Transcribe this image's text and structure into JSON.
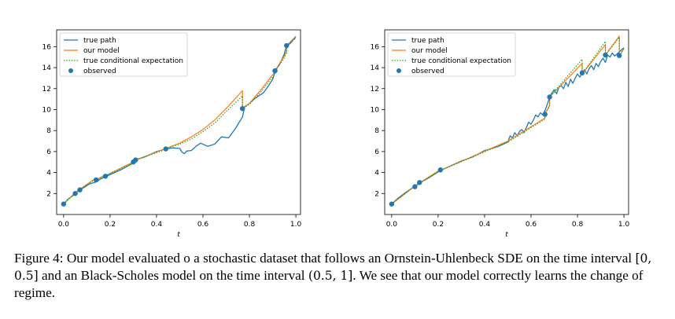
{
  "figure": {
    "caption": {
      "label": "Figure 4:",
      "part1": "Our model evaluated o a stochastic dataset that follows an Ornstein-Uhlenbeck SDE on the time interval",
      "interval1": "[0, 0.5]",
      "part2": "and an Black-Scholes model on the time interval",
      "interval2": "(0.5, 1]",
      "part3": ". We see that our model correctly learns the change of regime."
    }
  },
  "chart_data": [
    {
      "type": "line",
      "xlabel": "t",
      "ylabel": "",
      "xlim": [
        -0.03,
        1.02
      ],
      "ylim": [
        0,
        17.6
      ],
      "xticks": [
        "0.0",
        "0.2",
        "0.4",
        "0.6",
        "0.8",
        "1.0"
      ],
      "yticks": [
        "2",
        "4",
        "6",
        "8",
        "10",
        "12",
        "14",
        "16"
      ],
      "legend": {
        "placement": "top-left",
        "entries": [
          "true path",
          "our model",
          "true conditional expectation",
          "observed"
        ]
      },
      "colors": {
        "true_path": "#1f77b4",
        "our_model": "#ff7f0e",
        "expectation": "#2ca02c",
        "observed": "#1f77b4"
      },
      "series": [
        {
          "name": "true path",
          "x": [
            0.0,
            0.02,
            0.04,
            0.05,
            0.06,
            0.07,
            0.09,
            0.11,
            0.14,
            0.16,
            0.18,
            0.21,
            0.25,
            0.3,
            0.31,
            0.35,
            0.4,
            0.44,
            0.47,
            0.5,
            0.51,
            0.52,
            0.53,
            0.55,
            0.57,
            0.59,
            0.62,
            0.65,
            0.68,
            0.71,
            0.74,
            0.77,
            0.78,
            0.8,
            0.82,
            0.84,
            0.86,
            0.88,
            0.9,
            0.91,
            0.92,
            0.93,
            0.94,
            0.95,
            0.96,
            0.97,
            0.98,
            0.99,
            1.0
          ],
          "values": [
            1.0,
            1.5,
            1.8,
            2.0,
            2.2,
            2.35,
            2.6,
            2.9,
            3.1,
            3.4,
            3.6,
            3.9,
            4.3,
            4.9,
            5.2,
            5.5,
            6.0,
            6.25,
            6.35,
            6.3,
            5.95,
            5.8,
            6.05,
            6.1,
            6.5,
            6.8,
            6.5,
            6.7,
            7.4,
            7.3,
            8.2,
            9.3,
            10.3,
            10.6,
            11.0,
            11.3,
            11.6,
            12.2,
            12.9,
            13.6,
            14.0,
            14.3,
            14.8,
            15.3,
            16.1,
            16.2,
            16.4,
            16.7,
            16.9
          ]
        },
        {
          "name": "our model",
          "x": [
            0.0,
            0.05,
            0.05,
            0.07,
            0.07,
            0.14,
            0.14,
            0.18,
            0.18,
            0.3,
            0.3,
            0.31,
            0.31,
            0.44,
            0.44,
            0.5,
            0.55,
            0.6,
            0.65,
            0.7,
            0.77,
            0.77,
            0.8,
            0.85,
            0.91,
            0.91,
            0.95,
            0.96,
            0.96,
            1.0
          ],
          "values": [
            1.0,
            2.1,
            2.0,
            2.5,
            2.4,
            3.5,
            3.3,
            3.8,
            3.7,
            5.0,
            5.0,
            5.3,
            5.2,
            6.3,
            6.3,
            6.8,
            7.4,
            8.1,
            9.0,
            10.1,
            11.8,
            10.1,
            10.6,
            11.9,
            13.6,
            13.7,
            15.1,
            15.6,
            16.1,
            17.0
          ]
        },
        {
          "name": "true conditional expectation",
          "x": [
            0.0,
            0.05,
            0.05,
            0.07,
            0.07,
            0.14,
            0.14,
            0.18,
            0.18,
            0.3,
            0.3,
            0.31,
            0.31,
            0.44,
            0.44,
            0.5,
            0.55,
            0.6,
            0.65,
            0.7,
            0.77,
            0.77,
            0.8,
            0.85,
            0.91,
            0.91,
            0.95,
            0.96,
            0.96,
            1.0
          ],
          "values": [
            1.0,
            2.0,
            2.0,
            2.4,
            2.4,
            3.4,
            3.3,
            3.7,
            3.7,
            4.9,
            5.0,
            5.2,
            5.2,
            6.2,
            6.3,
            6.7,
            7.2,
            7.9,
            8.7,
            9.8,
            11.3,
            10.1,
            10.5,
            11.7,
            13.4,
            13.7,
            14.9,
            15.4,
            16.1,
            16.8
          ]
        },
        {
          "name": "observed",
          "x": [
            0.0,
            0.05,
            0.07,
            0.14,
            0.18,
            0.3,
            0.31,
            0.44,
            0.77,
            0.91,
            0.96
          ],
          "values": [
            1.0,
            2.0,
            2.35,
            3.3,
            3.65,
            5.0,
            5.2,
            6.25,
            10.1,
            13.7,
            16.1
          ]
        }
      ]
    },
    {
      "type": "line",
      "xlabel": "t",
      "ylabel": "",
      "xlim": [
        -0.03,
        1.02
      ],
      "ylim": [
        0,
        17.6
      ],
      "xticks": [
        "0.0",
        "0.2",
        "0.4",
        "0.6",
        "0.8",
        "1.0"
      ],
      "yticks": [
        "2",
        "4",
        "6",
        "8",
        "10",
        "12",
        "14",
        "16"
      ],
      "legend": {
        "placement": "top-left",
        "entries": [
          "true path",
          "our model",
          "true conditional expectation",
          "observed"
        ]
      },
      "colors": {
        "true_path": "#1f77b4",
        "our_model": "#ff7f0e",
        "expectation": "#2ca02c",
        "observed": "#1f77b4"
      },
      "series": [
        {
          "name": "true path",
          "x": [
            0.0,
            0.03,
            0.06,
            0.1,
            0.12,
            0.16,
            0.21,
            0.25,
            0.3,
            0.35,
            0.4,
            0.43,
            0.46,
            0.5,
            0.51,
            0.52,
            0.53,
            0.54,
            0.55,
            0.56,
            0.57,
            0.58,
            0.59,
            0.6,
            0.61,
            0.62,
            0.63,
            0.64,
            0.65,
            0.66,
            0.67,
            0.68,
            0.69,
            0.7,
            0.71,
            0.72,
            0.73,
            0.74,
            0.75,
            0.76,
            0.77,
            0.78,
            0.79,
            0.8,
            0.81,
            0.82,
            0.83,
            0.84,
            0.85,
            0.86,
            0.87,
            0.88,
            0.89,
            0.9,
            0.91,
            0.92,
            0.93,
            0.94,
            0.95,
            0.96,
            0.97,
            0.98,
            0.99,
            1.0
          ],
          "values": [
            1.0,
            1.6,
            2.1,
            2.7,
            3.0,
            3.5,
            4.2,
            4.6,
            5.1,
            5.5,
            6.1,
            6.3,
            6.5,
            6.9,
            7.5,
            7.3,
            7.8,
            7.5,
            7.9,
            8.1,
            7.8,
            8.3,
            8.8,
            8.6,
            9.0,
            9.5,
            9.3,
            9.7,
            9.5,
            9.9,
            10.5,
            11.2,
            11.6,
            11.9,
            11.5,
            12.1,
            12.3,
            12.0,
            12.6,
            12.2,
            12.9,
            12.5,
            13.0,
            13.4,
            13.1,
            13.5,
            13.8,
            13.4,
            13.9,
            14.2,
            13.8,
            14.4,
            14.1,
            14.6,
            14.9,
            14.5,
            15.2,
            15.0,
            15.4,
            15.1,
            15.3,
            15.5,
            15.7,
            15.9
          ]
        },
        {
          "name": "our model",
          "x": [
            0.0,
            0.1,
            0.1,
            0.12,
            0.12,
            0.21,
            0.21,
            0.5,
            0.66,
            0.66,
            0.68,
            0.68,
            0.82,
            0.82,
            0.92,
            0.92,
            0.98,
            0.98,
            1.0
          ],
          "values": [
            1.0,
            2.7,
            2.6,
            3.1,
            3.0,
            4.3,
            4.2,
            7.0,
            9.2,
            9.6,
            10.4,
            11.2,
            14.4,
            13.4,
            16.2,
            15.2,
            17.0,
            15.1,
            15.8
          ]
        },
        {
          "name": "true conditional expectation",
          "x": [
            0.0,
            0.1,
            0.1,
            0.12,
            0.12,
            0.21,
            0.21,
            0.5,
            0.66,
            0.66,
            0.68,
            0.68,
            0.82,
            0.82,
            0.92,
            0.92,
            0.98,
            0.98,
            1.0
          ],
          "values": [
            1.0,
            2.7,
            2.6,
            3.0,
            3.0,
            4.2,
            4.2,
            6.9,
            9.1,
            9.6,
            10.3,
            11.2,
            14.8,
            13.4,
            16.5,
            15.2,
            16.9,
            15.1,
            15.9
          ]
        },
        {
          "name": "observed",
          "x": [
            0.0,
            0.1,
            0.12,
            0.21,
            0.66,
            0.68,
            0.82,
            0.92,
            0.98
          ],
          "values": [
            1.0,
            2.65,
            3.05,
            4.25,
            9.55,
            11.2,
            13.5,
            15.2,
            15.15
          ]
        }
      ]
    }
  ]
}
